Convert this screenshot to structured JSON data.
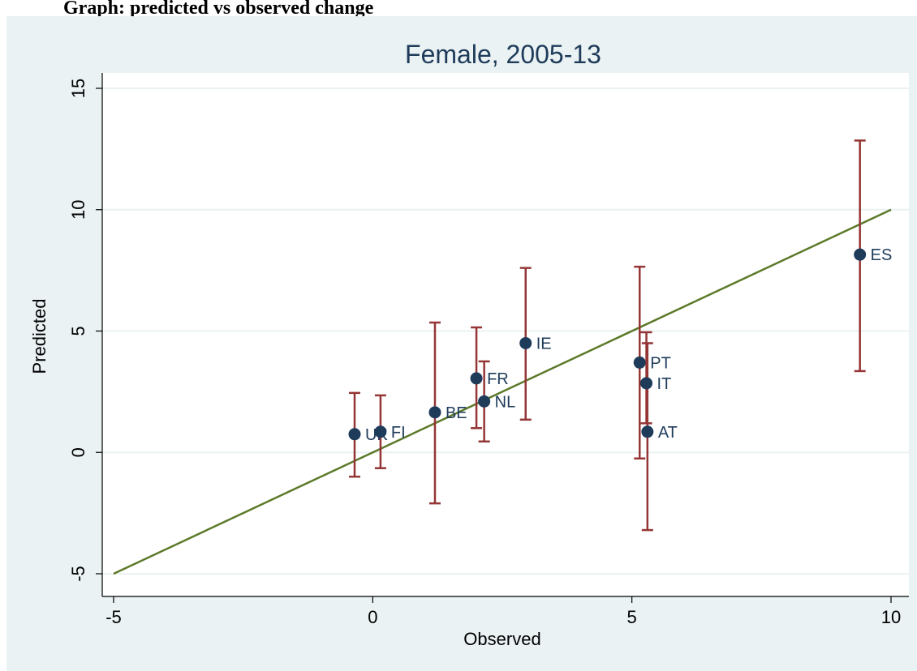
{
  "page_heading": "Graph: predicted vs observed change",
  "chart_data": {
    "type": "scatter",
    "title": "Female, 2005-13",
    "xlabel": "Observed",
    "ylabel": "Predicted",
    "xlim": [
      -5,
      10
    ],
    "ylim": [
      -5,
      15
    ],
    "xticks": [
      -5,
      0,
      5,
      10
    ],
    "yticks": [
      -5,
      0,
      5,
      10,
      15
    ],
    "grid": "horizontal",
    "points": [
      {
        "label": "UK",
        "x": -0.35,
        "y": 0.75,
        "lo": -1.0,
        "hi": 2.45
      },
      {
        "label": "FI",
        "x": 0.15,
        "y": 0.85,
        "lo": -0.65,
        "hi": 2.35
      },
      {
        "label": "BE",
        "x": 1.2,
        "y": 1.65,
        "lo": -2.1,
        "hi": 5.35
      },
      {
        "label": "FR",
        "x": 2.0,
        "y": 3.05,
        "lo": 1.0,
        "hi": 5.15
      },
      {
        "label": "NL",
        "x": 2.15,
        "y": 2.1,
        "lo": 0.45,
        "hi": 3.75
      },
      {
        "label": "IE",
        "x": 2.95,
        "y": 4.5,
        "lo": 1.35,
        "hi": 7.6
      },
      {
        "label": "PT",
        "x": 5.15,
        "y": 3.7,
        "lo": -0.25,
        "hi": 7.65
      },
      {
        "label": "IT",
        "x": 5.28,
        "y": 2.85,
        "lo": 1.2,
        "hi": 4.95
      },
      {
        "label": "AT",
        "x": 5.3,
        "y": 0.85,
        "lo": -3.2,
        "hi": 4.5
      },
      {
        "label": "ES",
        "x": 9.4,
        "y": 8.15,
        "lo": 3.35,
        "hi": 12.85
      }
    ],
    "reference_line": {
      "x": [
        -5,
        10
      ],
      "y": [
        -5,
        10
      ]
    },
    "colors": {
      "background": "#eaf2f3",
      "plot_bg": "#ffffff",
      "grid": "#eaf2f3",
      "marker": "#1e3b5a",
      "errorbar": "#953535",
      "line": "#5c7a2a",
      "title": "#1e3b5a"
    }
  }
}
